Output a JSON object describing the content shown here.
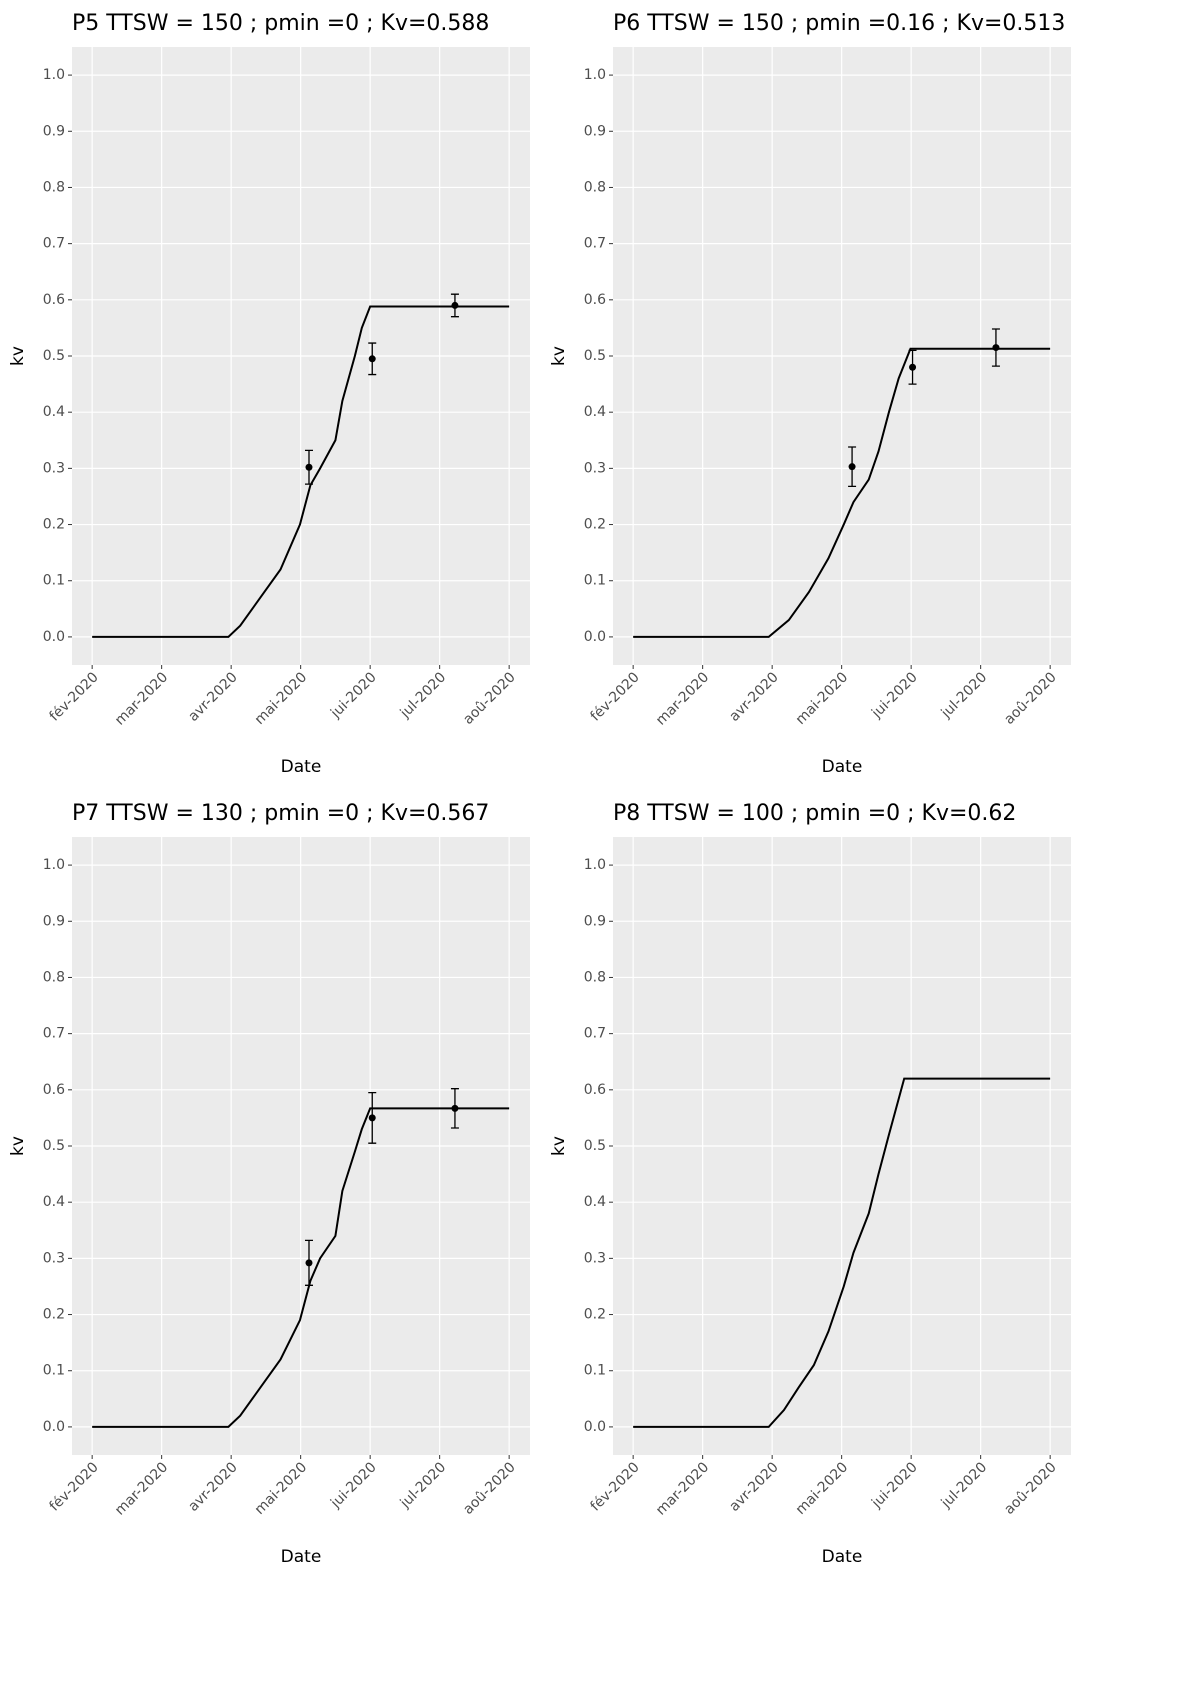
{
  "chart_data": [
    {
      "type": "line",
      "title": "P5 TTSW = 150 ; pmin =0 ; Kv=0.588",
      "x_label": "Date",
      "y_label": "kv",
      "xlim": [
        1.71,
        8.3
      ],
      "ylim": [
        -0.05,
        1.05
      ],
      "xticks": [
        {
          "value": 2,
          "label": "fév-2020"
        },
        {
          "value": 3,
          "label": "mar-2020"
        },
        {
          "value": 4,
          "label": "avr-2020"
        },
        {
          "value": 5,
          "label": "mai-2020"
        },
        {
          "value": 6,
          "label": "jui-2020"
        },
        {
          "value": 7,
          "label": "jul-2020"
        },
        {
          "value": 8,
          "label": "aoû-2020"
        }
      ],
      "yticks": [
        {
          "value": 0,
          "label": "0.0"
        },
        0.1,
        0.2,
        0.3,
        0.4,
        0.5,
        0.6,
        0.7,
        0.8,
        0.9,
        {
          "value": 1,
          "label": "1.0"
        }
      ],
      "grid": true,
      "color": "#000000",
      "line": {
        "x": [
          2,
          3.96,
          4.13,
          4.42,
          4.71,
          4.99,
          5.14,
          5.28,
          5.5,
          5.6,
          5.78,
          5.88,
          6.0,
          8.0
        ],
        "values": [
          0,
          0,
          0.02,
          0.07,
          0.12,
          0.2,
          0.27,
          0.3,
          0.35,
          0.42,
          0.5,
          0.55,
          0.588,
          0.588
        ]
      },
      "points": {
        "x": [
          5.12,
          6.03,
          7.22
        ],
        "values": [
          0.302,
          0.495,
          0.59
        ],
        "errors": [
          0.03,
          0.028,
          0.02
        ]
      }
    },
    {
      "type": "line",
      "title": "P6 TTSW = 150 ; pmin =0.16 ; Kv=0.513",
      "x_label": "Date",
      "y_label": "kv",
      "xlim": [
        1.71,
        8.3
      ],
      "ylim": [
        -0.05,
        1.05
      ],
      "xticks": [
        {
          "value": 2,
          "label": "fév-2020"
        },
        {
          "value": 3,
          "label": "mar-2020"
        },
        {
          "value": 4,
          "label": "avr-2020"
        },
        {
          "value": 5,
          "label": "mai-2020"
        },
        {
          "value": 6,
          "label": "jui-2020"
        },
        {
          "value": 7,
          "label": "jul-2020"
        },
        {
          "value": 8,
          "label": "aoû-2020"
        }
      ],
      "yticks": [
        {
          "value": 0,
          "label": "0.0"
        },
        0.1,
        0.2,
        0.3,
        0.4,
        0.5,
        0.6,
        0.7,
        0.8,
        0.9,
        {
          "value": 1,
          "label": "1.0"
        }
      ],
      "grid": true,
      "color": "#000000",
      "line": {
        "x": [
          2,
          3.95,
          4.24,
          4.53,
          4.81,
          5.03,
          5.17,
          5.39,
          5.53,
          5.68,
          5.82,
          5.99,
          8.0
        ],
        "values": [
          0,
          0,
          0.03,
          0.08,
          0.14,
          0.2,
          0.24,
          0.28,
          0.33,
          0.4,
          0.46,
          0.513,
          0.513
        ]
      },
      "points": {
        "x": [
          5.15,
          6.02,
          7.22
        ],
        "values": [
          0.303,
          0.48,
          0.515
        ],
        "errors": [
          0.035,
          0.03,
          0.033
        ]
      }
    },
    {
      "type": "line",
      "title": "P7 TTSW = 130 ; pmin =0 ; Kv=0.567",
      "x_label": "Date",
      "y_label": "kv",
      "xlim": [
        1.71,
        8.3
      ],
      "ylim": [
        -0.05,
        1.05
      ],
      "xticks": [
        {
          "value": 2,
          "label": "fév-2020"
        },
        {
          "value": 3,
          "label": "mar-2020"
        },
        {
          "value": 4,
          "label": "avr-2020"
        },
        {
          "value": 5,
          "label": "mai-2020"
        },
        {
          "value": 6,
          "label": "jui-2020"
        },
        {
          "value": 7,
          "label": "jul-2020"
        },
        {
          "value": 8,
          "label": "aoû-2020"
        }
      ],
      "yticks": [
        {
          "value": 0,
          "label": "0.0"
        },
        0.1,
        0.2,
        0.3,
        0.4,
        0.5,
        0.6,
        0.7,
        0.8,
        0.9,
        {
          "value": 1,
          "label": "1.0"
        }
      ],
      "grid": true,
      "color": "#000000",
      "line": {
        "x": [
          2,
          3.96,
          4.13,
          4.42,
          4.71,
          4.99,
          5.14,
          5.28,
          5.5,
          5.6,
          5.78,
          5.88,
          6.0,
          8.0
        ],
        "values": [
          0,
          0,
          0.02,
          0.07,
          0.12,
          0.19,
          0.26,
          0.3,
          0.34,
          0.42,
          0.49,
          0.53,
          0.567,
          0.567
        ]
      },
      "points": {
        "x": [
          5.12,
          6.03,
          7.22
        ],
        "values": [
          0.292,
          0.55,
          0.567
        ],
        "errors": [
          0.04,
          0.045,
          0.035
        ]
      }
    },
    {
      "type": "line",
      "title": "P8 TTSW = 100 ; pmin =0 ; Kv=0.62",
      "x_label": "Date",
      "y_label": "kv",
      "xlim": [
        1.71,
        8.3
      ],
      "ylim": [
        -0.05,
        1.05
      ],
      "xticks": [
        {
          "value": 2,
          "label": "fév-2020"
        },
        {
          "value": 3,
          "label": "mar-2020"
        },
        {
          "value": 4,
          "label": "avr-2020"
        },
        {
          "value": 5,
          "label": "mai-2020"
        },
        {
          "value": 6,
          "label": "jui-2020"
        },
        {
          "value": 7,
          "label": "jul-2020"
        },
        {
          "value": 8,
          "label": "aoû-2020"
        }
      ],
      "yticks": [
        {
          "value": 0,
          "label": "0.0"
        },
        0.1,
        0.2,
        0.3,
        0.4,
        0.5,
        0.6,
        0.7,
        0.8,
        0.9,
        {
          "value": 1,
          "label": "1.0"
        }
      ],
      "grid": true,
      "color": "#000000",
      "line": {
        "x": [
          2,
          3.95,
          4.17,
          4.38,
          4.6,
          4.81,
          5.03,
          5.17,
          5.39,
          5.53,
          5.68,
          5.9,
          8.0
        ],
        "values": [
          0,
          0,
          0.03,
          0.07,
          0.11,
          0.17,
          0.25,
          0.31,
          0.38,
          0.45,
          0.52,
          0.62,
          0.62
        ]
      }
    }
  ]
}
